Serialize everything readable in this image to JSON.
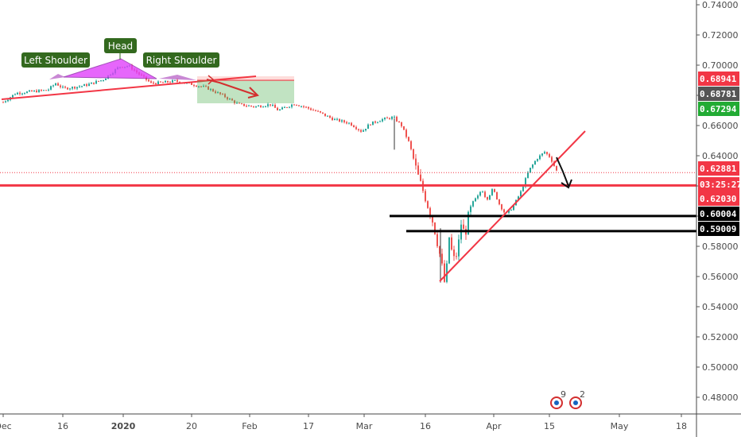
{
  "chart_data": {
    "type": "candlestick",
    "y_axis": {
      "ticks": [
        "0.74000",
        "0.72000",
        "0.70000",
        "0.68000",
        "0.66000",
        "0.64000",
        "0.62000",
        "0.60000",
        "0.58000",
        "0.56000",
        "0.54000",
        "0.52000",
        "0.50000",
        "0.48000"
      ],
      "range": [
        0.463,
        0.744
      ]
    },
    "x_axis": {
      "ticks": [
        "Dec",
        "16",
        "2020",
        "20",
        "Feb",
        "17",
        "Mar",
        "16",
        "Apr",
        "15",
        "May",
        "18"
      ]
    },
    "annotations": {
      "pattern_labels": [
        "Left Shoulder",
        "Head",
        "Right Shoulder"
      ]
    },
    "price_badges": [
      {
        "value": "0.68941",
        "color": "#f23645"
      },
      {
        "value": "0.68781",
        "color": "#555555"
      },
      {
        "value": "0.67294",
        "color": "#22ab34"
      },
      {
        "value": "0.62881",
        "color": "#f23645"
      },
      {
        "value": "03:25:27",
        "color": "#f23645"
      },
      {
        "value": "0.62030",
        "color": "#f23645"
      },
      {
        "value": "0.60004",
        "color": "#000000"
      },
      {
        "value": "0.59009",
        "color": "#000000"
      }
    ],
    "horizontal_levels": [
      {
        "price": 0.6203,
        "color": "#f23645"
      },
      {
        "price": 0.60004,
        "color": "#000000"
      },
      {
        "price": 0.59009,
        "color": "#000000"
      }
    ],
    "events": [
      "9",
      "2"
    ]
  }
}
